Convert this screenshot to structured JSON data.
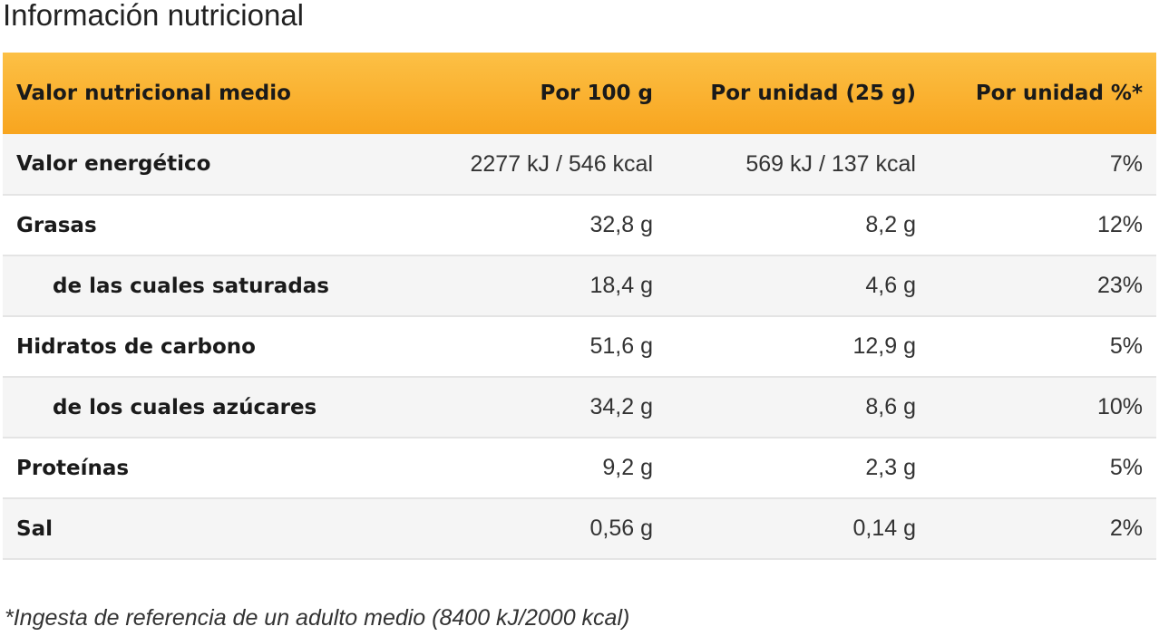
{
  "title": "Información nutricional",
  "table": {
    "header": [
      "Valor nutricional medio",
      "Por 100 g",
      "Por unidad (25 g)",
      "Por unidad %*"
    ],
    "rows": [
      {
        "cells": [
          "Valor energético",
          "2277 kJ / 546 kcal",
          "569 kJ / 137 kcal",
          "7%"
        ],
        "indent": false
      },
      {
        "cells": [
          "Grasas",
          "32,8 g",
          "8,2 g",
          "12%"
        ],
        "indent": false
      },
      {
        "cells": [
          "de las cuales saturadas",
          "18,4 g",
          "4,6 g",
          "23%"
        ],
        "indent": true
      },
      {
        "cells": [
          "Hidratos de carbono",
          "51,6 g",
          "12,9 g",
          "5%"
        ],
        "indent": false
      },
      {
        "cells": [
          "de los cuales azúcares",
          "34,2 g",
          "8,6 g",
          "10%"
        ],
        "indent": true
      },
      {
        "cells": [
          "Proteínas",
          "9,2 g",
          "2,3 g",
          "5%"
        ],
        "indent": false
      },
      {
        "cells": [
          "Sal",
          "0,56 g",
          "0,14 g",
          "2%"
        ],
        "indent": false
      }
    ]
  },
  "footnote": "*Ingesta de referencia de un adulto medio (8400 kJ/2000 kcal)"
}
